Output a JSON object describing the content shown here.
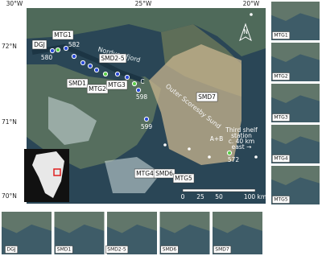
{
  "map": {
    "lon_labels": [
      "30°W",
      "25°W",
      "20°W"
    ],
    "lat_labels": [
      "72°N",
      "71°N",
      "70°N"
    ],
    "places": [
      "Nordvestfjord",
      "Outer Scoresby Sund"
    ],
    "north": "N",
    "stations": [
      "DGJ",
      "MTG1",
      "580",
      "582",
      "SMD2-5",
      "SMD1",
      "MTG2",
      "MTG3",
      "C",
      "598",
      "599",
      "SMD7",
      "A+B",
      "572",
      "MTG4",
      "SMD6",
      "MTG5"
    ],
    "shelf_note": [
      "Third shelf",
      "station",
      "c. 40 km",
      "east →"
    ],
    "scale": [
      "0",
      "25",
      "50",
      "100 km"
    ]
  },
  "right_panels": [
    "MTG1",
    "MTG2",
    "MTG3",
    "MTG4",
    "MTG5"
  ],
  "bottom_panels": [
    "DGJ",
    "SMD1",
    "SMD2-5",
    "SMD6",
    "SMD7"
  ]
}
